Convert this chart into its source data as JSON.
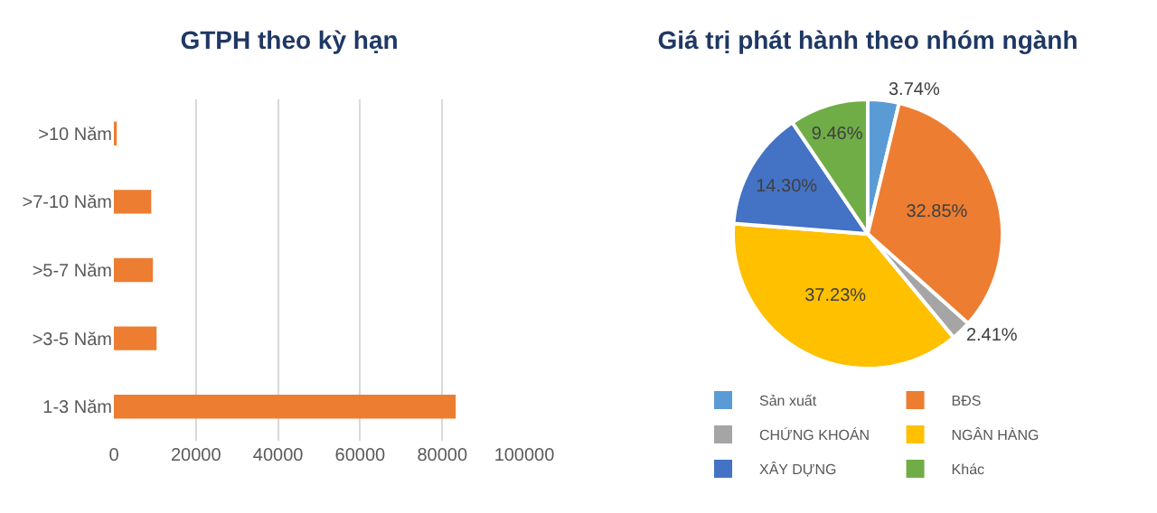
{
  "chart_data": [
    {
      "type": "bar",
      "title": "GTPH theo kỳ hạn",
      "orientation": "horizontal",
      "categories": [
        ">10 Năm",
        ">7-10 Năm",
        ">5-7 Năm",
        ">3-5 Năm",
        "1-3 Năm"
      ],
      "values": [
        700,
        9100,
        9500,
        10400,
        83300
      ],
      "color": "#ed7d31",
      "xlim": [
        0,
        100000
      ],
      "xticks": [
        0,
        20000,
        40000,
        60000,
        80000,
        100000
      ],
      "grid": "x"
    },
    {
      "type": "pie",
      "title": "Giá trị phát hành theo nhóm ngành",
      "categories": [
        "Sản xuất",
        "BĐS",
        "CHỨNG KHOÁN",
        "NGÂN HÀNG",
        "XÂY DỰNG",
        "Khác"
      ],
      "values": [
        3.74,
        32.85,
        2.41,
        37.23,
        14.3,
        9.46
      ],
      "value_labels": [
        "3.74%",
        "32.85%",
        "2.41%",
        "37.23%",
        "14.30%",
        "9.46%"
      ],
      "colors": [
        "#5b9bd5",
        "#ed7d31",
        "#a5a5a5",
        "#ffc000",
        "#4472c4",
        "#70ad47"
      ],
      "legend": "bottom"
    }
  ]
}
